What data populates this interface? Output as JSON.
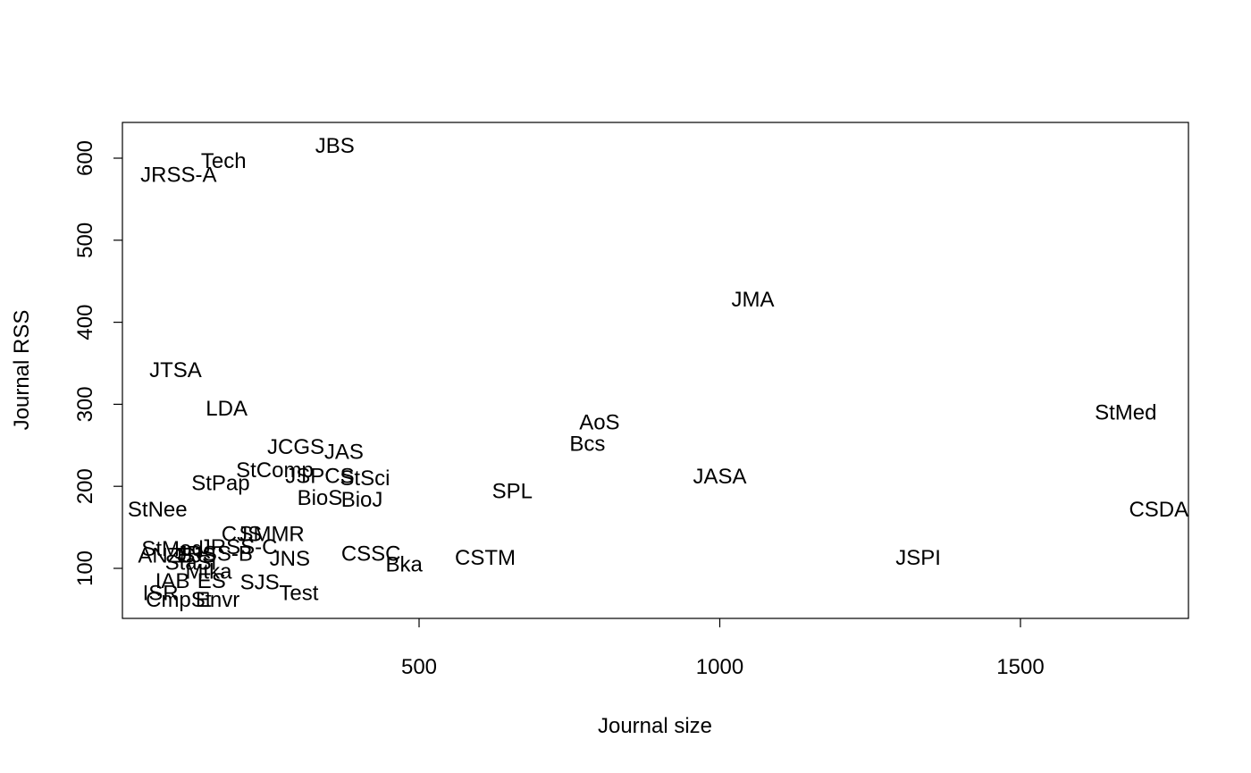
{
  "chart_data": {
    "type": "scatter",
    "title": "",
    "xlabel": "Journal size",
    "ylabel": "Journal RSS",
    "xlim": [
      0,
      1800
    ],
    "ylim": [
      40,
      640
    ],
    "x_ticks": [
      500,
      1000,
      1500
    ],
    "y_ticks": [
      100,
      200,
      300,
      400,
      500,
      600
    ],
    "grid": false,
    "legend": "none",
    "marker": "text-label",
    "points": [
      {
        "label": "JBS",
        "x": 360,
        "y": 615
      },
      {
        "label": "Tech",
        "x": 175,
        "y": 597
      },
      {
        "label": "JRSS-A",
        "x": 100,
        "y": 580
      },
      {
        "label": "JMA",
        "x": 1055,
        "y": 428
      },
      {
        "label": "JTSA",
        "x": 95,
        "y": 342
      },
      {
        "label": "LDA",
        "x": 180,
        "y": 295
      },
      {
        "label": "StMed",
        "x": 1675,
        "y": 290
      },
      {
        "label": "AoS",
        "x": 800,
        "y": 278
      },
      {
        "label": "Bcs",
        "x": 780,
        "y": 252
      },
      {
        "label": "JCGS",
        "x": 295,
        "y": 248
      },
      {
        "label": "JAS",
        "x": 375,
        "y": 242
      },
      {
        "label": "StComp",
        "x": 260,
        "y": 220
      },
      {
        "label": "JASA",
        "x": 1000,
        "y": 212
      },
      {
        "label": "JSPCS",
        "x": 335,
        "y": 213
      },
      {
        "label": "StSci",
        "x": 410,
        "y": 210
      },
      {
        "label": "StPap",
        "x": 170,
        "y": 204
      },
      {
        "label": "SPL",
        "x": 655,
        "y": 194
      },
      {
        "label": "BioS",
        "x": 335,
        "y": 186
      },
      {
        "label": "BioJ",
        "x": 405,
        "y": 184
      },
      {
        "label": "StNee",
        "x": 65,
        "y": 172
      },
      {
        "label": "CSDA",
        "x": 1730,
        "y": 172
      },
      {
        "label": "CJS",
        "x": 205,
        "y": 142
      },
      {
        "label": "SMMR",
        "x": 255,
        "y": 142
      },
      {
        "label": "StMod",
        "x": 90,
        "y": 124
      },
      {
        "label": "ANZS",
        "x": 80,
        "y": 116
      },
      {
        "label": "JRSS-C",
        "x": 200,
        "y": 126
      },
      {
        "label": "JRSS-B",
        "x": 160,
        "y": 118
      },
      {
        "label": "EJS",
        "x": 130,
        "y": 116
      },
      {
        "label": "CSSC",
        "x": 420,
        "y": 118
      },
      {
        "label": "CSTM",
        "x": 610,
        "y": 113
      },
      {
        "label": "JSPI",
        "x": 1330,
        "y": 113
      },
      {
        "label": "JNS",
        "x": 285,
        "y": 112
      },
      {
        "label": "StaSi",
        "x": 120,
        "y": 107
      },
      {
        "label": "Bka",
        "x": 475,
        "y": 105
      },
      {
        "label": "Mtka",
        "x": 150,
        "y": 96
      },
      {
        "label": "IAB",
        "x": 90,
        "y": 85
      },
      {
        "label": "ES",
        "x": 155,
        "y": 85
      },
      {
        "label": "SJS",
        "x": 235,
        "y": 83
      },
      {
        "label": "ISR",
        "x": 70,
        "y": 70
      },
      {
        "label": "Test",
        "x": 300,
        "y": 70
      },
      {
        "label": "CmpSt",
        "x": 100,
        "y": 62
      },
      {
        "label": "Envr",
        "x": 165,
        "y": 62
      }
    ]
  }
}
